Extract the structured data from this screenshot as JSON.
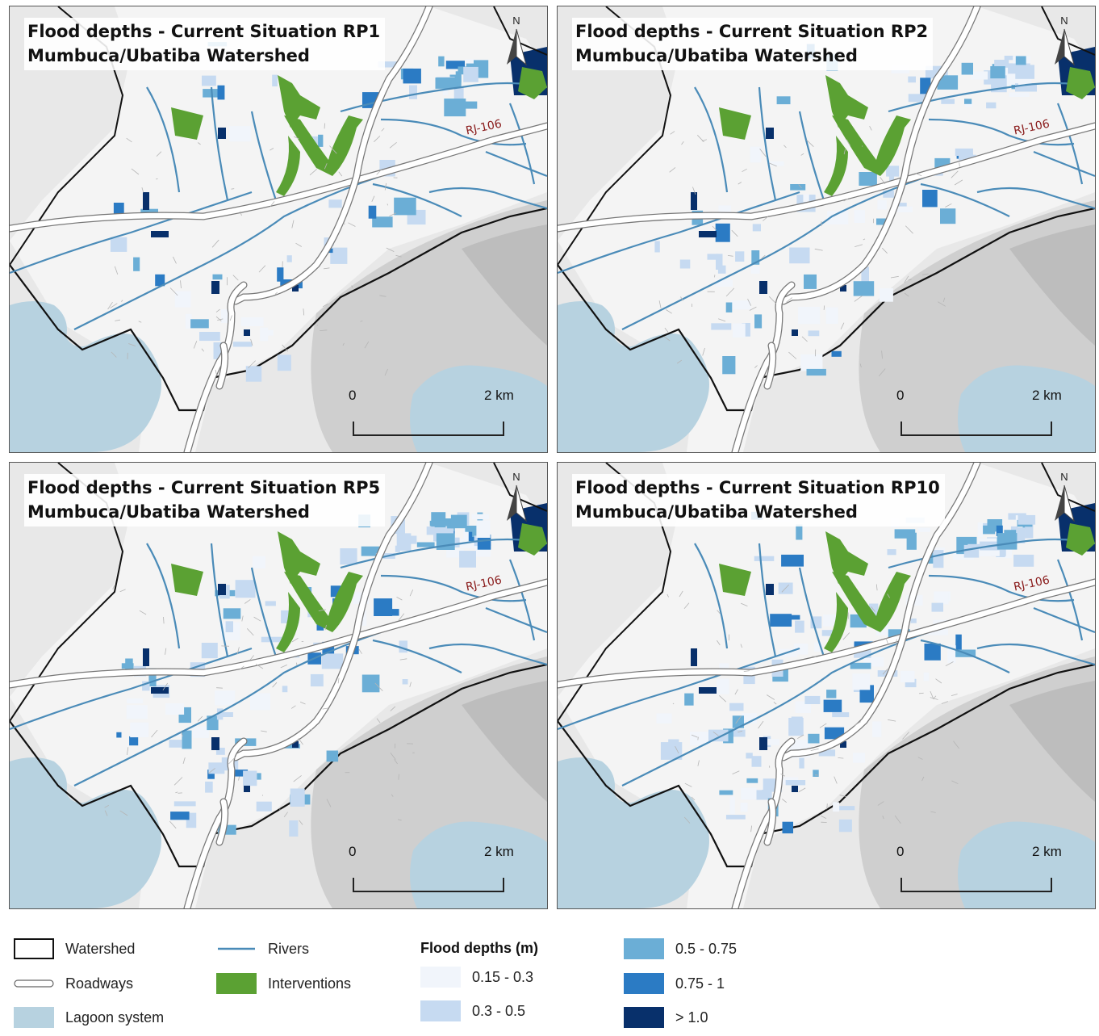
{
  "panels": [
    {
      "id": "rp1",
      "title_line1": "Flood depths - Current Situation RP1",
      "title_line2": "Mumbuca/Ubatiba Watershed"
    },
    {
      "id": "rp2",
      "title_line1": "Flood depths - Current Situation RP2",
      "title_line2": "Mumbuca/Ubatiba Watershed"
    },
    {
      "id": "rp5",
      "title_line1": "Flood depths - Current Situation RP5",
      "title_line2": "Mumbuca/Ubatiba Watershed"
    },
    {
      "id": "rp10",
      "title_line1": "Flood depths - Current Situation RP10",
      "title_line2": "Mumbuca/Ubatiba Watershed"
    }
  ],
  "map": {
    "north_label": "N",
    "road_label": "RJ-106",
    "scale_start": "0",
    "scale_end": "2 km"
  },
  "legend": {
    "watershed": "Watershed",
    "roadways": "Roadways",
    "lagoon": "Lagoon system",
    "rivers": "Rivers",
    "interventions": "Interventions",
    "flood_title": "Flood depths (m)",
    "classes": [
      "0.15 - 0.3",
      "0.3 - 0.5",
      "0.5 - 0.75",
      "0.75 - 1",
      "> 1.0"
    ]
  },
  "colors": {
    "river": "#4a8bb8",
    "intervention": "#5ba133",
    "lagoon": "#b7d2e0",
    "d1": "#f1f5fb",
    "d2": "#c6daf1",
    "d3": "#6baed6",
    "d4": "#2b7bc4",
    "d5": "#08306b"
  }
}
